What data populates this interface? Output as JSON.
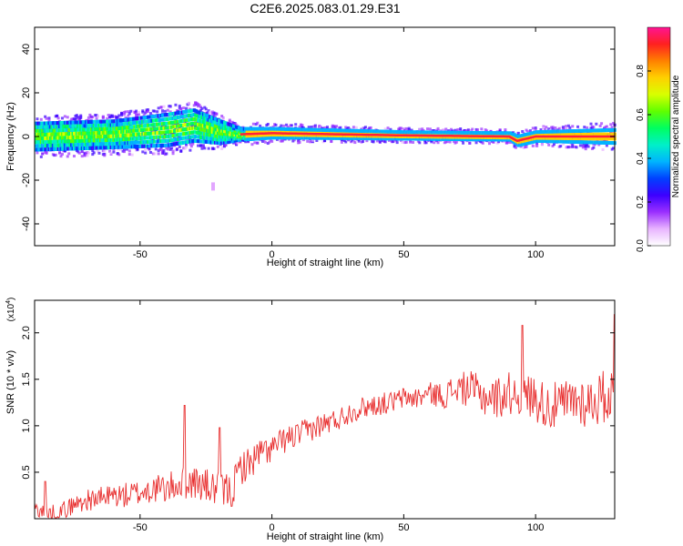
{
  "title": "C2E6.2025.083.01.29.E31",
  "chart_data": [
    {
      "type": "heatmap",
      "xlabel": "Height of straight line (km)",
      "ylabel": "Frequency (Hz)",
      "xlim": [
        -90,
        130
      ],
      "ylim": [
        -50,
        50
      ],
      "xticks": [
        -50,
        0,
        50,
        100
      ],
      "yticks": [
        -40,
        -20,
        0,
        20,
        40
      ],
      "colorbar": {
        "label": "Normalized spectral amplitude",
        "range": [
          0,
          1
        ],
        "ticks": [
          "0.0",
          "0.2",
          "0.4",
          "0.6",
          "0.8"
        ],
        "colors": [
          "#ffffff",
          "#e8b4ff",
          "#9b30ff",
          "#3c00ff",
          "#0040ff",
          "#00b4ff",
          "#00f0c8",
          "#00ff60",
          "#60ff00",
          "#d8ff00",
          "#ffd000",
          "#ff8000",
          "#ff2020",
          "#ff1493"
        ]
      },
      "band": {
        "description_points": [
          {
            "x": -88,
            "center": 0,
            "halfwidth": 6
          },
          {
            "x": -60,
            "center": 1,
            "halfwidth": 6
          },
          {
            "x": -40,
            "center": 3,
            "halfwidth": 7
          },
          {
            "x": -30,
            "center": 5,
            "halfwidth": 7
          },
          {
            "x": -20,
            "center": 2,
            "halfwidth": 5
          },
          {
            "x": -12,
            "center": 1,
            "halfwidth": 2.5
          },
          {
            "x": 0,
            "center": 1.5,
            "halfwidth": 2
          },
          {
            "x": 50,
            "center": 0.5,
            "halfwidth": 1.5
          },
          {
            "x": 90,
            "center": 0,
            "halfwidth": 1.5
          },
          {
            "x": 93,
            "center": -2,
            "halfwidth": 2
          },
          {
            "x": 100,
            "center": 0,
            "halfwidth": 2
          },
          {
            "x": 130,
            "center": 0,
            "halfwidth": 3
          }
        ]
      }
    },
    {
      "type": "line",
      "xlabel": "Height of straight line (km)",
      "ylabel": "SNR (10 * v/v)",
      "y_multiplier": "(x10",
      "y_multiplier_exp": "4",
      "y_multiplier_close": ")",
      "xlim": [
        -90,
        130
      ],
      "ylim": [
        0,
        2.35
      ],
      "xticks": [
        -50,
        0,
        50,
        100
      ],
      "yticks": [
        "0.5",
        "1.0",
        "1.5",
        "2.0"
      ],
      "ytick_values": [
        0.5,
        1.0,
        1.5,
        2.0
      ],
      "series": [
        {
          "color": "#e83030",
          "trend": [
            [
              -90,
              0.12
            ],
            [
              -85,
              0.05
            ],
            [
              -80,
              0.08
            ],
            [
              -75,
              0.15
            ],
            [
              -70,
              0.2
            ],
            [
              -65,
              0.22
            ],
            [
              -60,
              0.25
            ],
            [
              -55,
              0.25
            ],
            [
              -50,
              0.28
            ],
            [
              -45,
              0.32
            ],
            [
              -40,
              0.32
            ],
            [
              -35,
              0.38
            ],
            [
              -30,
              0.4
            ],
            [
              -25,
              0.35
            ],
            [
              -20,
              0.3
            ],
            [
              -15,
              0.3
            ],
            [
              -12,
              0.55
            ],
            [
              -8,
              0.6
            ],
            [
              -5,
              0.7
            ],
            [
              0,
              0.75
            ],
            [
              5,
              0.85
            ],
            [
              10,
              0.9
            ],
            [
              15,
              0.97
            ],
            [
              20,
              1.02
            ],
            [
              25,
              1.07
            ],
            [
              30,
              1.15
            ],
            [
              35,
              1.2
            ],
            [
              40,
              1.23
            ],
            [
              45,
              1.25
            ],
            [
              50,
              1.3
            ],
            [
              55,
              1.3
            ],
            [
              60,
              1.35
            ],
            [
              65,
              1.32
            ],
            [
              70,
              1.4
            ],
            [
              75,
              1.4
            ],
            [
              80,
              1.32
            ],
            [
              85,
              1.3
            ],
            [
              90,
              1.35
            ],
            [
              95,
              1.35
            ],
            [
              100,
              1.3
            ],
            [
              105,
              1.2
            ],
            [
              110,
              1.22
            ],
            [
              115,
              1.28
            ],
            [
              120,
              1.25
            ],
            [
              125,
              1.3
            ],
            [
              130,
              1.35
            ]
          ],
          "noise_amplitude": [
            [
              -90,
              0.08
            ],
            [
              -20,
              0.2
            ],
            [
              -15,
              0.2
            ],
            [
              0,
              0.15
            ],
            [
              30,
              0.12
            ],
            [
              60,
              0.12
            ],
            [
              80,
              0.22
            ],
            [
              100,
              0.25
            ],
            [
              130,
              0.3
            ]
          ],
          "peaks": [
            [
              -86,
              0.4
            ],
            [
              -33,
              1.22
            ],
            [
              -20,
              0.98
            ],
            [
              95,
              2.08
            ],
            [
              130,
              2.2
            ]
          ]
        }
      ]
    }
  ]
}
